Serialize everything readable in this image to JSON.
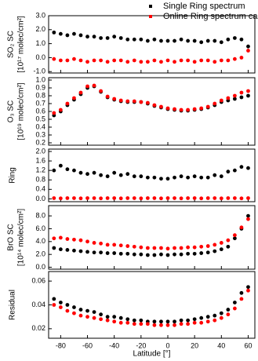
{
  "chart_data": [
    {
      "type": "scatter",
      "ylabel": [
        "SO₂ SC",
        "[10¹⁷ molec/cm²]"
      ],
      "x": [
        -85,
        -80,
        -75,
        -70,
        -65,
        -60,
        -55,
        -50,
        -45,
        -40,
        -35,
        -30,
        -25,
        -20,
        -15,
        -10,
        -5,
        0,
        5,
        10,
        15,
        20,
        25,
        30,
        35,
        40,
        45,
        50,
        55,
        60
      ],
      "xlim": [
        -89,
        65
      ],
      "xticks": [
        -80,
        -60,
        -40,
        -20,
        0,
        20,
        40,
        60
      ],
      "ylim": [
        -1.1,
        3.0
      ],
      "yticks": [
        {
          "value": -1,
          "label": "-1.0"
        },
        {
          "value": 0,
          "label": "0.0"
        },
        {
          "value": 1,
          "label": "1.0"
        },
        {
          "value": 2,
          "label": "2.0"
        },
        {
          "value": 3,
          "label": "3.0"
        }
      ],
      "series": [
        {
          "name": "Single Ring spectrum",
          "color": "#000000",
          "values": [
            1.8,
            1.7,
            1.6,
            1.7,
            1.6,
            1.5,
            1.5,
            1.4,
            1.4,
            1.5,
            1.4,
            1.3,
            1.3,
            1.3,
            1.2,
            1.3,
            1.2,
            1.2,
            1.2,
            1.3,
            1.2,
            1.2,
            1.1,
            1.2,
            1.2,
            1.1,
            1.3,
            1.4,
            1.3,
            0.8
          ]
        },
        {
          "name": "Online Ring spectrum calculati",
          "color": "#ff0000",
          "values": [
            -0.1,
            -0.2,
            -0.2,
            -0.1,
            -0.2,
            -0.3,
            -0.2,
            -0.2,
            -0.3,
            -0.2,
            -0.2,
            -0.3,
            -0.2,
            -0.3,
            -0.3,
            -0.2,
            -0.3,
            -0.2,
            -0.3,
            -0.2,
            -0.2,
            -0.3,
            -0.2,
            -0.2,
            -0.3,
            -0.2,
            -0.2,
            -0.1,
            0.0,
            0.5
          ]
        }
      ]
    },
    {
      "type": "scatter",
      "ylabel": [
        "O₃ SC",
        "[10¹⁹ molec/cm²]"
      ],
      "x": [
        -85,
        -80,
        -75,
        -70,
        -65,
        -60,
        -55,
        -50,
        -45,
        -40,
        -35,
        -30,
        -25,
        -20,
        -15,
        -10,
        -5,
        0,
        5,
        10,
        15,
        20,
        25,
        30,
        35,
        40,
        45,
        50,
        55,
        60
      ],
      "xlim": [
        -89,
        65
      ],
      "xticks": [
        -80,
        -60,
        -40,
        -20,
        0,
        20,
        40,
        60
      ],
      "ylim": [
        0.17,
        1.03
      ],
      "yticks": [
        0.2,
        0.3,
        0.4,
        0.5,
        0.6,
        0.7,
        0.8,
        0.9,
        {
          "value": 1,
          "label": "1.0"
        }
      ],
      "series": [
        {
          "color": "#000000",
          "values": [
            0.55,
            0.6,
            0.68,
            0.75,
            0.82,
            0.9,
            0.92,
            0.85,
            0.78,
            0.75,
            0.73,
            0.72,
            0.72,
            0.72,
            0.7,
            0.67,
            0.65,
            0.63,
            0.62,
            0.61,
            0.61,
            0.62,
            0.63,
            0.65,
            0.68,
            0.72,
            0.74,
            0.76,
            0.78,
            0.8
          ]
        },
        {
          "color": "#ff0000",
          "values": [
            0.58,
            0.62,
            0.7,
            0.77,
            0.84,
            0.92,
            0.93,
            0.86,
            0.79,
            0.76,
            0.74,
            0.73,
            0.73,
            0.72,
            0.71,
            0.68,
            0.66,
            0.64,
            0.63,
            0.62,
            0.62,
            0.63,
            0.64,
            0.66,
            0.7,
            0.74,
            0.77,
            0.8,
            0.84,
            0.86
          ]
        }
      ]
    },
    {
      "type": "scatter",
      "ylabel": [
        "Ring"
      ],
      "x": [
        -85,
        -80,
        -75,
        -70,
        -65,
        -60,
        -55,
        -50,
        -45,
        -40,
        -35,
        -30,
        -25,
        -20,
        -15,
        -10,
        -5,
        0,
        5,
        10,
        15,
        20,
        25,
        30,
        35,
        40,
        45,
        50,
        55,
        60
      ],
      "xlim": [
        -89,
        65
      ],
      "xticks": [
        -80,
        -60,
        -40,
        -20,
        0,
        20,
        40,
        60
      ],
      "ylim": [
        -0.12,
        2.1
      ],
      "yticks": [
        {
          "value": 0,
          "label": "0.0"
        },
        0.4,
        0.8,
        1.2,
        1.6,
        {
          "value": 2,
          "label": "2.0"
        }
      ],
      "series": [
        {
          "color": "#000000",
          "values": [
            1.2,
            1.4,
            1.25,
            1.2,
            1.1,
            1.05,
            1.1,
            1.0,
            0.95,
            1.1,
            1.0,
            1.05,
            0.95,
            0.95,
            0.9,
            0.9,
            0.85,
            0.85,
            0.9,
            0.95,
            0.9,
            0.95,
            0.9,
            0.9,
            1.0,
            0.95,
            1.15,
            1.2,
            1.35,
            1.3
          ]
        },
        {
          "color": "#ff0000",
          "values": [
            0.03,
            0.02,
            0.03,
            0.03,
            0.02,
            0.03,
            0.03,
            0.02,
            0.03,
            0.03,
            0.02,
            0.03,
            0.03,
            0.02,
            0.03,
            0.03,
            0.02,
            0.03,
            0.03,
            0.02,
            0.03,
            0.03,
            0.02,
            0.03,
            0.03,
            0.02,
            0.03,
            0.03,
            0.02,
            0.03
          ]
        }
      ]
    },
    {
      "type": "scatter",
      "ylabel": [
        "BrO SC",
        "[10¹⁴ molec/cm²]"
      ],
      "x": [
        -85,
        -80,
        -75,
        -70,
        -65,
        -60,
        -55,
        -50,
        -45,
        -40,
        -35,
        -30,
        -25,
        -20,
        -15,
        -10,
        -5,
        0,
        5,
        10,
        15,
        20,
        25,
        30,
        35,
        40,
        45,
        50,
        55,
        60
      ],
      "xlim": [
        -89,
        65
      ],
      "xticks": [
        -80,
        -60,
        -40,
        -20,
        0,
        20,
        40,
        60
      ],
      "ylim": [
        -0.3,
        9.6
      ],
      "yticks": [
        {
          "value": 0,
          "label": "0.0"
        },
        {
          "value": 2,
          "label": "2.0"
        },
        {
          "value": 4,
          "label": "4.0"
        },
        {
          "value": 6,
          "label": "6.0"
        },
        {
          "value": 8,
          "label": "8.0"
        }
      ],
      "series": [
        {
          "color": "#000000",
          "values": [
            3.0,
            2.8,
            2.7,
            2.6,
            2.5,
            2.4,
            2.3,
            2.3,
            2.2,
            2.2,
            2.1,
            2.1,
            2.0,
            2.0,
            1.9,
            1.9,
            2.0,
            1.9,
            2.0,
            2.0,
            2.1,
            2.1,
            2.2,
            2.3,
            2.5,
            2.8,
            3.2,
            4.5,
            6.0,
            8.0
          ]
        },
        {
          "color": "#ff0000",
          "values": [
            4.5,
            4.6,
            4.4,
            4.3,
            4.2,
            4.0,
            3.8,
            3.7,
            3.5,
            3.5,
            3.4,
            3.3,
            3.2,
            3.1,
            3.0,
            3.0,
            3.0,
            2.9,
            3.0,
            3.0,
            3.1,
            3.1,
            3.2,
            3.3,
            3.5,
            3.8,
            4.2,
            5.0,
            6.2,
            7.5
          ]
        }
      ]
    },
    {
      "type": "scatter",
      "ylabel": [
        "Residual"
      ],
      "xlabel": "Latitude [°]",
      "x": [
        -85,
        -80,
        -75,
        -70,
        -65,
        -60,
        -55,
        -50,
        -45,
        -40,
        -35,
        -30,
        -25,
        -20,
        -15,
        -10,
        -5,
        0,
        5,
        10,
        15,
        20,
        25,
        30,
        35,
        40,
        45,
        50,
        55,
        60
      ],
      "xlim": [
        -89,
        65
      ],
      "xticks": [
        -80,
        -60,
        -40,
        -20,
        0,
        20,
        40,
        60
      ],
      "ylim": [
        0.012,
        0.068
      ],
      "yticks": [
        0.02,
        0.04,
        0.06
      ],
      "series": [
        {
          "color": "#000000",
          "values": [
            0.045,
            0.042,
            0.04,
            0.038,
            0.036,
            0.035,
            0.034,
            0.032,
            0.03,
            0.03,
            0.029,
            0.028,
            0.027,
            0.027,
            0.026,
            0.026,
            0.026,
            0.026,
            0.026,
            0.027,
            0.027,
            0.028,
            0.029,
            0.03,
            0.031,
            0.033,
            0.036,
            0.042,
            0.05,
            0.055
          ]
        },
        {
          "color": "#ff0000",
          "values": [
            0.04,
            0.038,
            0.035,
            0.033,
            0.031,
            0.03,
            0.029,
            0.028,
            0.027,
            0.026,
            0.025,
            0.025,
            0.024,
            0.024,
            0.024,
            0.023,
            0.023,
            0.023,
            0.023,
            0.024,
            0.024,
            0.025,
            0.025,
            0.026,
            0.027,
            0.029,
            0.032,
            0.037,
            0.045,
            0.052
          ]
        }
      ]
    }
  ]
}
